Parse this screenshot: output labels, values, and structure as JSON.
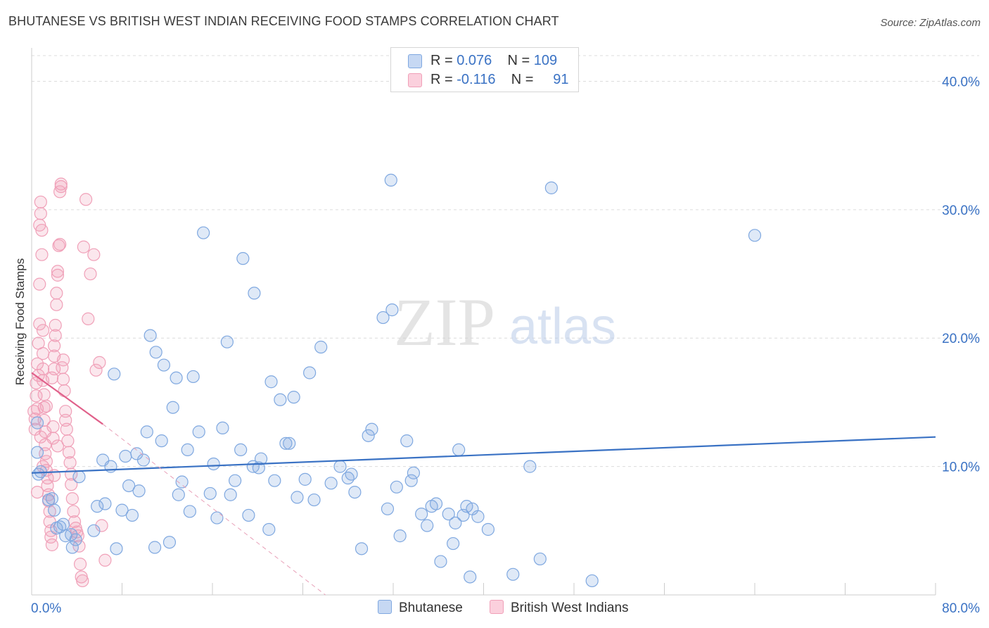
{
  "title": "BHUTANESE VS BRITISH WEST INDIAN RECEIVING FOOD STAMPS CORRELATION CHART",
  "source": "Source: ZipAtlas.com",
  "watermark": {
    "zip": "ZIP",
    "atlas": "atlas"
  },
  "legend_top": [
    {
      "r_label": "R =",
      "r_value": "0.076",
      "n_label": "N =",
      "n_value": "109",
      "color": "#7fa8e0"
    },
    {
      "r_label": "R =",
      "r_value": "-0.116",
      "n_label": "N =",
      "n_value": "91",
      "color": "#f0a0b8"
    }
  ],
  "legend_bottom": [
    {
      "label": "Bhutanese",
      "color": "#7fa8e0"
    },
    {
      "label": "British West Indians",
      "color": "#f0a0b8"
    }
  ],
  "chart_data": {
    "type": "scatter",
    "title": "BHUTANESE VS BRITISH WEST INDIAN RECEIVING FOOD STAMPS CORRELATION CHART",
    "xlabel": "",
    "ylabel": "Receiving Food Stamps",
    "xlim": [
      0,
      80
    ],
    "ylim": [
      0,
      42
    ],
    "x_tick_labels": [
      "0.0%",
      "80.0%"
    ],
    "y_ticks": [
      10,
      20,
      30,
      40
    ],
    "y_tick_labels": [
      "10.0%",
      "20.0%",
      "30.0%",
      "40.0%"
    ],
    "grid": "horizontal dashed",
    "legend_position": "top-center",
    "series": [
      {
        "name": "Bhutanese",
        "color": "#7fa8e0",
        "trend": {
          "x": [
            0,
            80
          ],
          "y": [
            9.5,
            12.3
          ],
          "color": "#3a72c4"
        },
        "points": [
          [
            0.5,
            13.4
          ],
          [
            0.5,
            11.1
          ],
          [
            0.6,
            9.4
          ],
          [
            0.8,
            9.6
          ],
          [
            1.5,
            7.4
          ],
          [
            1.8,
            7.5
          ],
          [
            2.0,
            6.6
          ],
          [
            2.2,
            5.2
          ],
          [
            2.8,
            5.5
          ],
          [
            3.0,
            4.6
          ],
          [
            3.5,
            4.7
          ],
          [
            3.6,
            3.7
          ],
          [
            3.9,
            4.3
          ],
          [
            4.2,
            9.2
          ],
          [
            5.5,
            5.0
          ],
          [
            5.8,
            6.9
          ],
          [
            6.3,
            10.5
          ],
          [
            6.5,
            7.1
          ],
          [
            7.0,
            10.0
          ],
          [
            7.3,
            17.2
          ],
          [
            7.5,
            3.6
          ],
          [
            8.0,
            6.6
          ],
          [
            8.3,
            10.8
          ],
          [
            8.6,
            8.5
          ],
          [
            8.9,
            6.2
          ],
          [
            9.3,
            11.0
          ],
          [
            9.5,
            8.1
          ],
          [
            9.9,
            10.5
          ],
          [
            10.2,
            12.7
          ],
          [
            10.5,
            20.2
          ],
          [
            10.9,
            3.7
          ],
          [
            11.0,
            18.9
          ],
          [
            11.5,
            12.0
          ],
          [
            11.7,
            17.9
          ],
          [
            12.2,
            4.1
          ],
          [
            12.5,
            14.6
          ],
          [
            12.8,
            16.9
          ],
          [
            13.0,
            7.8
          ],
          [
            13.3,
            8.8
          ],
          [
            13.8,
            11.3
          ],
          [
            14.0,
            6.5
          ],
          [
            14.3,
            17.0
          ],
          [
            14.8,
            12.7
          ],
          [
            15.2,
            28.2
          ],
          [
            15.8,
            7.9
          ],
          [
            16.1,
            10.2
          ],
          [
            16.4,
            6.0
          ],
          [
            16.9,
            13.0
          ],
          [
            17.3,
            19.7
          ],
          [
            17.6,
            7.8
          ],
          [
            18.0,
            8.9
          ],
          [
            18.5,
            11.3
          ],
          [
            18.7,
            26.2
          ],
          [
            19.2,
            6.2
          ],
          [
            19.7,
            23.5
          ],
          [
            19.6,
            10.0
          ],
          [
            20.1,
            9.9
          ],
          [
            20.3,
            10.6
          ],
          [
            21.0,
            5.1
          ],
          [
            21.2,
            16.6
          ],
          [
            21.5,
            8.9
          ],
          [
            22.0,
            15.2
          ],
          [
            22.5,
            11.8
          ],
          [
            22.8,
            11.8
          ],
          [
            23.2,
            15.4
          ],
          [
            23.5,
            7.6
          ],
          [
            24.2,
            9.0
          ],
          [
            24.6,
            17.3
          ],
          [
            25.0,
            7.4
          ],
          [
            25.6,
            19.3
          ],
          [
            26.5,
            8.7
          ],
          [
            27.3,
            10.0
          ],
          [
            28.0,
            9.1
          ],
          [
            28.3,
            9.4
          ],
          [
            28.6,
            8.0
          ],
          [
            29.2,
            3.6
          ],
          [
            29.8,
            12.4
          ],
          [
            30.1,
            12.9
          ],
          [
            31.1,
            21.6
          ],
          [
            31.5,
            6.7
          ],
          [
            31.8,
            32.3
          ],
          [
            31.9,
            22.2
          ],
          [
            32.3,
            8.4
          ],
          [
            32.6,
            4.6
          ],
          [
            33.2,
            12.0
          ],
          [
            33.6,
            8.9
          ],
          [
            33.8,
            9.5
          ],
          [
            34.5,
            6.3
          ],
          [
            35.0,
            5.4
          ],
          [
            35.4,
            6.9
          ],
          [
            35.8,
            7.1
          ],
          [
            36.2,
            2.6
          ],
          [
            36.9,
            6.3
          ],
          [
            37.3,
            4.0
          ],
          [
            37.5,
            5.6
          ],
          [
            37.8,
            11.3
          ],
          [
            38.2,
            6.2
          ],
          [
            38.5,
            6.9
          ],
          [
            38.8,
            1.4
          ],
          [
            39.0,
            6.7
          ],
          [
            39.5,
            6.1
          ],
          [
            40.4,
            5.1
          ],
          [
            42.6,
            1.6
          ],
          [
            44.1,
            10.0
          ],
          [
            45.0,
            2.8
          ],
          [
            46.0,
            31.7
          ],
          [
            49.6,
            1.1
          ],
          [
            64.0,
            28.0
          ],
          [
            2.5,
            5.3
          ]
        ]
      },
      {
        "name": "British West Indians",
        "color": "#f0a0b8",
        "trend": {
          "x": [
            0,
            6.3
          ],
          "y": [
            17.3,
            13.3
          ],
          "color": "#e0608a"
        },
        "trend_dashed": {
          "x": [
            6.3,
            26
          ],
          "y": [
            13.3,
            0
          ],
          "color": "#e8a0b8"
        },
        "points": [
          [
            0.2,
            14.3
          ],
          [
            0.3,
            13.7
          ],
          [
            0.3,
            12.9
          ],
          [
            0.4,
            15.5
          ],
          [
            0.4,
            16.5
          ],
          [
            0.5,
            18.0
          ],
          [
            0.5,
            14.5
          ],
          [
            0.6,
            17.1
          ],
          [
            0.6,
            19.6
          ],
          [
            0.7,
            21.1
          ],
          [
            0.7,
            24.2
          ],
          [
            0.7,
            28.8
          ],
          [
            0.8,
            29.7
          ],
          [
            0.8,
            30.6
          ],
          [
            0.9,
            28.4
          ],
          [
            0.9,
            26.5
          ],
          [
            1.0,
            20.6
          ],
          [
            1.0,
            18.8
          ],
          [
            1.0,
            17.6
          ],
          [
            1.0,
            16.7
          ],
          [
            1.1,
            15.6
          ],
          [
            1.1,
            14.6
          ],
          [
            1.1,
            13.6
          ],
          [
            1.2,
            12.7
          ],
          [
            1.2,
            11.7
          ],
          [
            1.2,
            11.0
          ],
          [
            1.3,
            10.4
          ],
          [
            1.3,
            9.7
          ],
          [
            1.4,
            9.1
          ],
          [
            1.4,
            8.5
          ],
          [
            1.5,
            7.8
          ],
          [
            1.5,
            7.3
          ],
          [
            1.6,
            6.5
          ],
          [
            1.6,
            5.7
          ],
          [
            1.7,
            5.0
          ],
          [
            1.7,
            4.5
          ],
          [
            1.8,
            3.9
          ],
          [
            1.9,
            12.2
          ],
          [
            1.9,
            13.1
          ],
          [
            2.0,
            17.6
          ],
          [
            2.0,
            18.6
          ],
          [
            2.0,
            19.4
          ],
          [
            2.1,
            20.2
          ],
          [
            2.1,
            21.0
          ],
          [
            2.2,
            22.6
          ],
          [
            2.2,
            23.5
          ],
          [
            2.3,
            24.9
          ],
          [
            2.3,
            25.2
          ],
          [
            2.4,
            27.2
          ],
          [
            2.5,
            27.3
          ],
          [
            2.5,
            31.4
          ],
          [
            2.6,
            31.8
          ],
          [
            2.6,
            32.0
          ],
          [
            2.7,
            17.7
          ],
          [
            2.8,
            18.3
          ],
          [
            2.8,
            16.8
          ],
          [
            2.9,
            15.9
          ],
          [
            3.0,
            14.3
          ],
          [
            3.0,
            13.6
          ],
          [
            3.1,
            12.9
          ],
          [
            3.2,
            12.0
          ],
          [
            3.3,
            11.1
          ],
          [
            3.4,
            10.3
          ],
          [
            3.5,
            9.4
          ],
          [
            3.5,
            8.6
          ],
          [
            3.6,
            7.5
          ],
          [
            3.7,
            6.5
          ],
          [
            3.8,
            5.7
          ],
          [
            3.9,
            5.2
          ],
          [
            4.0,
            4.9
          ],
          [
            4.1,
            4.6
          ],
          [
            4.2,
            3.8
          ],
          [
            4.3,
            2.4
          ],
          [
            4.4,
            1.4
          ],
          [
            4.5,
            1.1
          ],
          [
            4.6,
            27.1
          ],
          [
            4.8,
            30.8
          ],
          [
            5.0,
            21.5
          ],
          [
            5.2,
            25.0
          ],
          [
            5.5,
            26.5
          ],
          [
            5.7,
            17.5
          ],
          [
            6.0,
            18.1
          ],
          [
            6.2,
            5.4
          ],
          [
            6.5,
            2.7
          ],
          [
            2.0,
            9.3
          ],
          [
            1.3,
            14.7
          ],
          [
            1.8,
            16.9
          ],
          [
            2.3,
            11.6
          ],
          [
            1.0,
            10.0
          ],
          [
            0.5,
            8.0
          ],
          [
            0.8,
            12.3
          ]
        ]
      }
    ]
  }
}
